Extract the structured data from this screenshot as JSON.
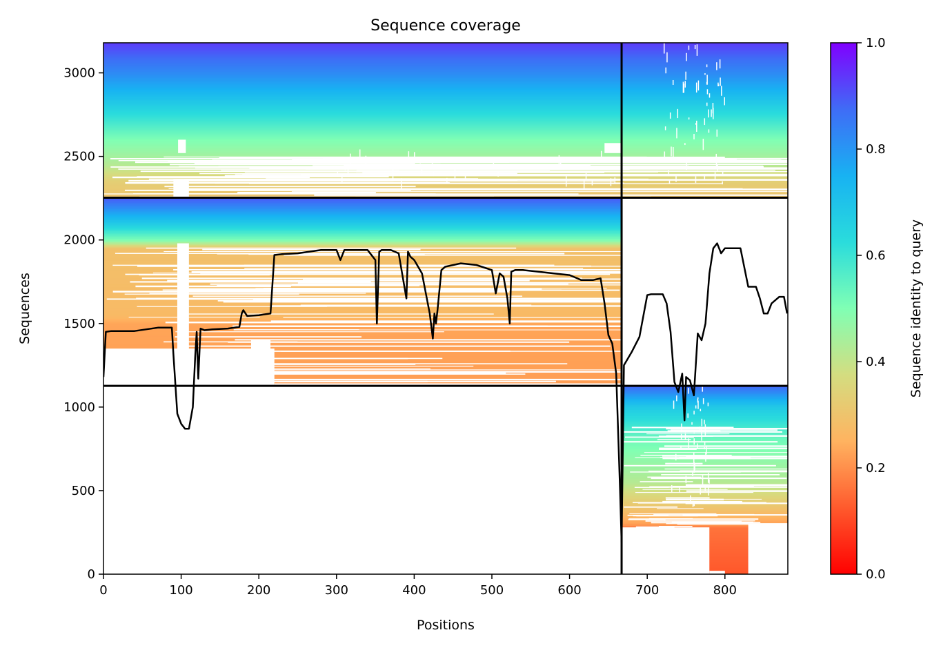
{
  "chart_data": {
    "type": "heatmap",
    "title": "Sequence coverage",
    "xlabel": "Positions",
    "ylabel": "Sequences",
    "xlim": [
      0,
      881
    ],
    "ylim": [
      0,
      3180
    ],
    "xticks": [
      0,
      100,
      200,
      300,
      400,
      500,
      600,
      700,
      800
    ],
    "yticks": [
      0,
      500,
      1000,
      1500,
      2000,
      2500,
      3000
    ],
    "colorbar": {
      "label": "Sequence identity to query",
      "range": [
        0,
        1
      ],
      "ticks": [
        0.0,
        0.2,
        0.4,
        0.6,
        0.8,
        1.0
      ],
      "colormap": "rainbow_r"
    },
    "dividers": {
      "vertical_x": 667,
      "horizontal_y": [
        1127,
        2253
      ]
    },
    "blocks": [
      {
        "name": "top",
        "y_range": [
          2253,
          3180
        ],
        "x_range": [
          0,
          881
        ],
        "identity_stops": [
          {
            "y": 2253,
            "identity": 0.3
          },
          {
            "y": 2350,
            "identity": 0.33
          },
          {
            "y": 2450,
            "identity": 0.42
          },
          {
            "y": 2600,
            "identity": 0.5
          },
          {
            "y": 2750,
            "identity": 0.62
          },
          {
            "y": 2900,
            "identity": 0.75
          },
          {
            "y": 3000,
            "identity": 0.82
          },
          {
            "y": 3180,
            "identity": 0.93
          }
        ]
      },
      {
        "name": "middle",
        "y_range": [
          1127,
          2253
        ],
        "x_range": [
          0,
          667
        ],
        "identity_stops": [
          {
            "y": 1127,
            "identity": 0.22
          },
          {
            "y": 1500,
            "identity": 0.23
          },
          {
            "y": 1550,
            "identity": 0.27
          },
          {
            "y": 1950,
            "identity": 0.29
          },
          {
            "y": 2000,
            "identity": 0.5
          },
          {
            "y": 2100,
            "identity": 0.68
          },
          {
            "y": 2180,
            "identity": 0.8
          },
          {
            "y": 2253,
            "identity": 0.9
          }
        ]
      },
      {
        "name": "bottom-right",
        "y_range": [
          0,
          1127
        ],
        "x_range": [
          667,
          881
        ],
        "identity_stops": [
          {
            "y": 0,
            "identity": 0.12
          },
          {
            "y": 280,
            "identity": 0.16
          },
          {
            "y": 300,
            "identity": 0.22
          },
          {
            "y": 400,
            "identity": 0.3
          },
          {
            "y": 550,
            "identity": 0.42
          },
          {
            "y": 800,
            "identity": 0.52
          },
          {
            "y": 1000,
            "identity": 0.68
          },
          {
            "y": 1127,
            "identity": 0.88
          }
        ]
      }
    ],
    "coverage_line": {
      "color": "#000000",
      "x": [
        0,
        3,
        10,
        40,
        70,
        88,
        90,
        95,
        100,
        105,
        110,
        115,
        118,
        120,
        122,
        125,
        130,
        140,
        160,
        175,
        178,
        180,
        185,
        200,
        215,
        220,
        230,
        250,
        280,
        300,
        305,
        310,
        320,
        340,
        350,
        352,
        355,
        358,
        360,
        365,
        370,
        380,
        390,
        392,
        395,
        400,
        410,
        420,
        424,
        426,
        428,
        430,
        435,
        440,
        460,
        480,
        500,
        505,
        510,
        515,
        520,
        523,
        525,
        530,
        540,
        560,
        580,
        600,
        610,
        615,
        620,
        630,
        640,
        645,
        650,
        655,
        660,
        665,
        667,
        670,
        680,
        690,
        700,
        705,
        720,
        725,
        730,
        735,
        740,
        745,
        748,
        750,
        755,
        760,
        765,
        770,
        775,
        780,
        785,
        790,
        795,
        800,
        805,
        820,
        830,
        840,
        845,
        850,
        855,
        860,
        870,
        876,
        880
      ],
      "y": [
        1180,
        1450,
        1455,
        1455,
        1475,
        1475,
        1320,
        960,
        900,
        870,
        870,
        1000,
        1300,
        1450,
        1170,
        1470,
        1460,
        1465,
        1470,
        1480,
        1560,
        1580,
        1545,
        1550,
        1560,
        1910,
        1915,
        1920,
        1940,
        1940,
        1880,
        1940,
        1940,
        1940,
        1880,
        1500,
        1930,
        1940,
        1940,
        1940,
        1940,
        1920,
        1650,
        1930,
        1900,
        1880,
        1800,
        1560,
        1410,
        1560,
        1500,
        1580,
        1820,
        1840,
        1860,
        1850,
        1820,
        1680,
        1800,
        1780,
        1650,
        1500,
        1810,
        1820,
        1820,
        1810,
        1800,
        1790,
        1770,
        1760,
        1760,
        1760,
        1770,
        1620,
        1430,
        1380,
        1200,
        500,
        190,
        1250,
        1330,
        1420,
        1670,
        1675,
        1675,
        1620,
        1450,
        1150,
        1090,
        1200,
        920,
        1180,
        1160,
        1070,
        1440,
        1400,
        1500,
        1800,
        1950,
        1980,
        1920,
        1950,
        1950,
        1950,
        1720,
        1720,
        1650,
        1560,
        1560,
        1620,
        1660,
        1660,
        1560
      ]
    }
  }
}
